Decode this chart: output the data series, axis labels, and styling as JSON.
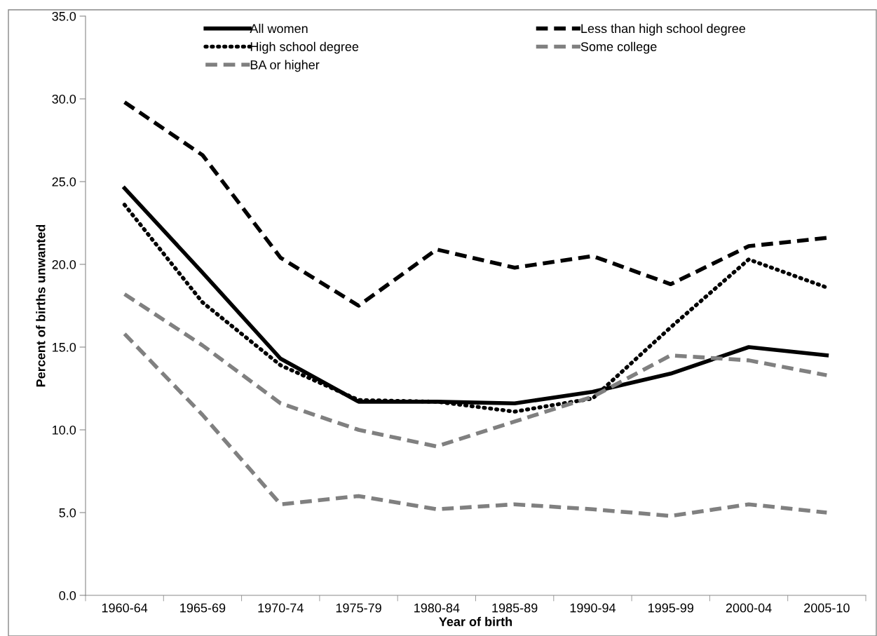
{
  "chart_data": {
    "type": "line",
    "xlabel": "Year of birth",
    "ylabel": "Percent of births unwanted",
    "categories": [
      "1960-64",
      "1965-69",
      "1970-74",
      "1975-79",
      "1980-84",
      "1985-89",
      "1990-94",
      "1995-99",
      "2000-04",
      "2005-10"
    ],
    "ylim": [
      0,
      35
    ],
    "yticks": [
      {
        "value": 0,
        "label": "0.0"
      },
      {
        "value": 5,
        "label": "5.0"
      },
      {
        "value": 10,
        "label": "10.0"
      },
      {
        "value": 15,
        "label": "15.0"
      },
      {
        "value": 20,
        "label": "20.0"
      },
      {
        "value": 25,
        "label": "25.0"
      },
      {
        "value": 30,
        "label": "30.0"
      },
      {
        "value": 35,
        "label": "35.0"
      }
    ],
    "grid": false,
    "legend": "top",
    "marker": "none",
    "series": [
      {
        "name": "All women",
        "color": "#000000",
        "line_style": "solid",
        "values": [
          24.6,
          19.5,
          14.3,
          11.7,
          11.7,
          11.6,
          12.3,
          13.4,
          15.0,
          14.5
        ]
      },
      {
        "name": "Less than high school degree",
        "color": "#000000",
        "line_style": "dashed",
        "values": [
          29.8,
          26.6,
          20.4,
          17.5,
          20.9,
          19.8,
          20.5,
          18.8,
          21.1,
          21.6
        ]
      },
      {
        "name": "High school degree",
        "color": "#000000",
        "line_style": "dotted",
        "values": [
          23.6,
          17.7,
          13.9,
          11.8,
          11.7,
          11.1,
          11.9,
          16.2,
          20.3,
          18.6
        ]
      },
      {
        "name": "Some college",
        "color": "#808080",
        "line_style": "dashed",
        "values": [
          18.2,
          15.1,
          11.6,
          10.0,
          9.0,
          10.5,
          12.0,
          14.5,
          14.2,
          13.3
        ]
      },
      {
        "name": "BA or higher",
        "color": "#808080",
        "line_style": "dashed",
        "values": [
          15.8,
          10.9,
          5.5,
          6.0,
          5.2,
          5.5,
          5.2,
          4.8,
          5.5,
          5.0
        ]
      }
    ]
  }
}
